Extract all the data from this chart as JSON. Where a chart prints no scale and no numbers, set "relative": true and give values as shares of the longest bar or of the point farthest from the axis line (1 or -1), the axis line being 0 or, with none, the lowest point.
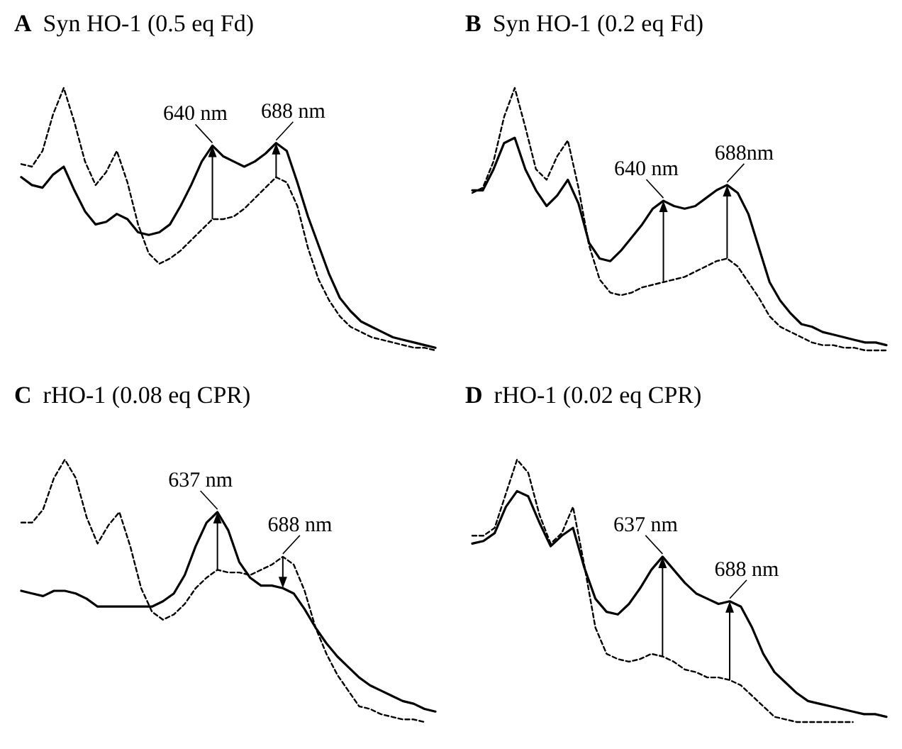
{
  "chart_data": [
    {
      "type": "line",
      "title": "A Syn HO-1 (0.5 eq Fd)",
      "relative": true,
      "tick_labels": false,
      "categories": [
        null,
        null,
        null,
        null,
        null,
        null,
        null,
        null,
        null,
        null,
        null,
        null,
        null,
        null,
        null,
        null,
        null,
        null,
        null,
        null,
        null,
        null,
        null,
        null,
        null,
        null,
        null,
        null,
        null,
        null,
        null,
        null,
        null,
        null,
        null,
        null,
        null,
        null,
        null,
        null
      ],
      "series": [
        {
          "color": "#000000",
          "line_style": "solid",
          "values": [
            0.66,
            0.63,
            0.62,
            0.67,
            0.7,
            0.61,
            0.53,
            0.48,
            0.49,
            0.52,
            0.5,
            0.45,
            0.44,
            0.45,
            0.48,
            0.55,
            0.63,
            0.72,
            0.78,
            0.74,
            0.72,
            0.7,
            0.72,
            0.75,
            0.79,
            0.76,
            0.64,
            0.51,
            0.4,
            0.29,
            0.2,
            0.15,
            0.11,
            0.09,
            0.07,
            0.05,
            0.04,
            0.03,
            0.02,
            0.01
          ]
        },
        {
          "color": "#000000",
          "line_style": "dashed",
          "values": [
            0.71,
            0.7,
            0.76,
            0.9,
            1.0,
            0.87,
            0.72,
            0.63,
            0.68,
            0.76,
            0.64,
            0.48,
            0.37,
            0.33,
            0.35,
            0.38,
            0.42,
            0.46,
            0.5,
            0.5,
            0.51,
            0.54,
            0.58,
            0.62,
            0.66,
            0.64,
            0.55,
            0.39,
            0.27,
            0.19,
            0.13,
            0.09,
            0.07,
            0.05,
            0.04,
            0.03,
            0.02,
            0.01,
            0.01,
            0.0
          ]
        }
      ],
      "annotations": [
        "640 nm",
        "688 nm"
      ]
    },
    {
      "type": "line",
      "title": "B Syn HO-1 (0.2 eq Fd)",
      "relative": true,
      "tick_labels": false,
      "categories": [
        null,
        null,
        null,
        null,
        null,
        null,
        null,
        null,
        null,
        null,
        null,
        null,
        null,
        null,
        null,
        null,
        null,
        null,
        null,
        null,
        null,
        null,
        null,
        null,
        null,
        null,
        null,
        null,
        null,
        null,
        null,
        null,
        null,
        null,
        null,
        null,
        null,
        null,
        null,
        null
      ],
      "series": [
        {
          "color": "#000000",
          "line_style": "solid",
          "values": [
            0.61,
            0.61,
            0.69,
            0.79,
            0.81,
            0.69,
            0.61,
            0.55,
            0.59,
            0.65,
            0.56,
            0.41,
            0.35,
            0.34,
            0.38,
            0.43,
            0.48,
            0.54,
            0.57,
            0.55,
            0.54,
            0.55,
            0.58,
            0.61,
            0.63,
            0.6,
            0.52,
            0.39,
            0.26,
            0.19,
            0.14,
            0.1,
            0.09,
            0.07,
            0.06,
            0.05,
            0.04,
            0.03,
            0.03,
            0.02
          ]
        },
        {
          "color": "#000000",
          "line_style": "dashed",
          "values": [
            0.6,
            0.62,
            0.72,
            0.89,
            1.0,
            0.85,
            0.69,
            0.65,
            0.74,
            0.8,
            0.62,
            0.4,
            0.27,
            0.22,
            0.21,
            0.22,
            0.24,
            0.25,
            0.26,
            0.27,
            0.28,
            0.3,
            0.32,
            0.34,
            0.35,
            0.32,
            0.26,
            0.2,
            0.13,
            0.09,
            0.07,
            0.05,
            0.03,
            0.02,
            0.02,
            0.01,
            0.01,
            0.0,
            0.0,
            0.0
          ]
        }
      ],
      "annotations": [
        "640 nm",
        "688nm"
      ]
    },
    {
      "type": "line",
      "title": "C rHO-1 (0.08 eq CPR)",
      "relative": true,
      "tick_labels": false,
      "categories": [
        null,
        null,
        null,
        null,
        null,
        null,
        null,
        null,
        null,
        null,
        null,
        null,
        null,
        null,
        null,
        null,
        null,
        null,
        null,
        null,
        null,
        null,
        null,
        null,
        null,
        null,
        null,
        null,
        null,
        null,
        null,
        null,
        null,
        null,
        null,
        null,
        null,
        null,
        null
      ],
      "series": [
        {
          "color": "#000000",
          "line_style": "solid",
          "values": [
            0.5,
            0.49,
            0.48,
            0.5,
            0.5,
            0.49,
            0.47,
            0.44,
            0.44,
            0.44,
            0.44,
            0.44,
            0.44,
            0.46,
            0.49,
            0.56,
            0.67,
            0.76,
            0.8,
            0.73,
            0.61,
            0.55,
            0.52,
            0.52,
            0.51,
            0.49,
            0.43,
            0.36,
            0.3,
            0.25,
            0.21,
            0.17,
            0.14,
            0.12,
            0.1,
            0.08,
            0.07,
            0.05,
            0.04
          ]
        },
        {
          "color": "#000000",
          "line_style": "dashed",
          "values": [
            0.76,
            0.76,
            0.81,
            0.93,
            1.0,
            0.93,
            0.78,
            0.68,
            0.75,
            0.8,
            0.67,
            0.51,
            0.42,
            0.39,
            0.41,
            0.45,
            0.51,
            0.55,
            0.58,
            0.57,
            0.57,
            0.56,
            0.58,
            0.6,
            0.63,
            0.6,
            0.5,
            0.36,
            0.26,
            0.18,
            0.12,
            0.06,
            0.05,
            0.03,
            0.02,
            0.01,
            0.01,
            0.0,
            null
          ]
        }
      ],
      "annotations": [
        "637 nm",
        "688 nm"
      ]
    },
    {
      "type": "line",
      "title": "D rHO-1 (0.02 eq CPR)",
      "relative": true,
      "tick_labels": false,
      "categories": [
        null,
        null,
        null,
        null,
        null,
        null,
        null,
        null,
        null,
        null,
        null,
        null,
        null,
        null,
        null,
        null,
        null,
        null,
        null,
        null,
        null,
        null,
        null,
        null,
        null,
        null,
        null,
        null,
        null,
        null,
        null,
        null,
        null,
        null,
        null,
        null,
        null,
        null
      ],
      "series": [
        {
          "color": "#000000",
          "line_style": "solid",
          "values": [
            0.68,
            0.69,
            0.72,
            0.82,
            0.88,
            0.86,
            0.76,
            0.67,
            0.71,
            0.74,
            0.59,
            0.47,
            0.42,
            0.41,
            0.45,
            0.51,
            0.58,
            0.63,
            0.58,
            0.53,
            0.49,
            0.47,
            0.45,
            0.46,
            0.44,
            0.36,
            0.26,
            0.19,
            0.15,
            0.11,
            0.08,
            0.07,
            0.06,
            0.05,
            0.04,
            0.03,
            0.03,
            0.02
          ]
        },
        {
          "color": "#000000",
          "line_style": "dashed",
          "values": [
            0.71,
            0.71,
            0.74,
            0.87,
            1.0,
            0.95,
            0.79,
            0.68,
            0.72,
            0.82,
            0.6,
            0.36,
            0.26,
            0.24,
            0.23,
            0.24,
            0.26,
            0.25,
            0.23,
            0.2,
            0.19,
            0.17,
            0.17,
            0.16,
            0.14,
            0.1,
            0.06,
            0.02,
            0.01,
            0.0,
            0.0,
            0.0,
            0.0,
            0.0,
            0.0,
            null,
            null,
            null
          ]
        }
      ],
      "annotations": [
        "637 nm",
        "688 nm"
      ]
    }
  ]
}
